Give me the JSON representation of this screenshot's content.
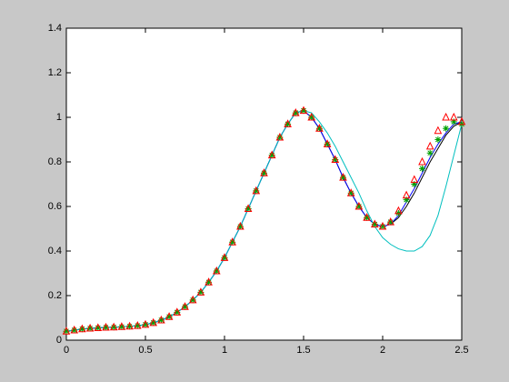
{
  "chart_data": {
    "type": "line",
    "x": [
      0,
      0.05,
      0.1,
      0.15,
      0.2,
      0.25,
      0.3,
      0.35,
      0.4,
      0.45,
      0.5,
      0.55,
      0.6,
      0.65,
      0.7,
      0.75,
      0.8,
      0.85,
      0.9,
      0.95,
      1,
      1.05,
      1.1,
      1.15,
      1.2,
      1.25,
      1.3,
      1.35,
      1.4,
      1.45,
      1.5,
      1.55,
      1.6,
      1.65,
      1.7,
      1.75,
      1.8,
      1.85,
      1.9,
      1.95,
      2,
      2.05,
      2.1,
      2.15,
      2.2,
      2.25,
      2.3,
      2.35,
      2.4,
      2.45,
      2.5
    ],
    "series": [
      {
        "color": "#000000",
        "marker": "none",
        "values": [
          0.04,
          0.045,
          0.05,
          0.053,
          0.055,
          0.057,
          0.058,
          0.06,
          0.062,
          0.065,
          0.07,
          0.078,
          0.09,
          0.105,
          0.125,
          0.15,
          0.18,
          0.215,
          0.26,
          0.31,
          0.37,
          0.44,
          0.51,
          0.59,
          0.67,
          0.75,
          0.83,
          0.91,
          0.97,
          1.02,
          1.03,
          1.0,
          0.95,
          0.88,
          0.81,
          0.73,
          0.66,
          0.6,
          0.55,
          0.52,
          0.51,
          0.52,
          0.55,
          0.6,
          0.66,
          0.73,
          0.8,
          0.86,
          0.92,
          0.96,
          0.98
        ]
      },
      {
        "color": "#0000ff",
        "marker": "none",
        "values": [
          0.04,
          0.045,
          0.05,
          0.053,
          0.055,
          0.057,
          0.058,
          0.06,
          0.062,
          0.065,
          0.07,
          0.078,
          0.09,
          0.105,
          0.125,
          0.15,
          0.18,
          0.215,
          0.26,
          0.31,
          0.37,
          0.44,
          0.51,
          0.59,
          0.67,
          0.75,
          0.83,
          0.91,
          0.97,
          1.02,
          1.03,
          1.0,
          0.95,
          0.88,
          0.81,
          0.73,
          0.66,
          0.6,
          0.55,
          0.52,
          0.51,
          0.52,
          0.56,
          0.62,
          0.68,
          0.75,
          0.82,
          0.88,
          0.93,
          0.97,
          0.98
        ]
      },
      {
        "color": "#00bfbf",
        "marker": "none",
        "values": [
          0.04,
          0.045,
          0.05,
          0.053,
          0.055,
          0.057,
          0.058,
          0.06,
          0.062,
          0.065,
          0.07,
          0.078,
          0.09,
          0.105,
          0.125,
          0.15,
          0.18,
          0.215,
          0.26,
          0.31,
          0.37,
          0.44,
          0.51,
          0.59,
          0.67,
          0.75,
          0.83,
          0.91,
          0.97,
          1.02,
          1.03,
          1.02,
          0.98,
          0.93,
          0.87,
          0.8,
          0.73,
          0.66,
          0.58,
          0.51,
          0.46,
          0.43,
          0.41,
          0.4,
          0.4,
          0.42,
          0.47,
          0.56,
          0.69,
          0.83,
          0.97
        ]
      },
      {
        "color": "#00a000",
        "marker": "*",
        "values": [
          0.04,
          0.045,
          0.05,
          0.053,
          0.055,
          0.057,
          0.058,
          0.06,
          0.062,
          0.065,
          0.07,
          0.078,
          0.09,
          0.105,
          0.125,
          0.15,
          0.18,
          0.215,
          0.26,
          0.31,
          0.37,
          0.44,
          0.51,
          0.59,
          0.67,
          0.75,
          0.83,
          0.91,
          0.97,
          1.02,
          1.03,
          1.0,
          0.95,
          0.88,
          0.81,
          0.73,
          0.66,
          0.6,
          0.55,
          0.52,
          0.51,
          0.53,
          0.57,
          0.63,
          0.7,
          0.77,
          0.84,
          0.9,
          0.95,
          0.98,
          0.97
        ]
      },
      {
        "color": "#ff0000",
        "marker": "^",
        "values": [
          0.04,
          0.045,
          0.05,
          0.053,
          0.055,
          0.057,
          0.058,
          0.06,
          0.062,
          0.065,
          0.07,
          0.078,
          0.09,
          0.105,
          0.125,
          0.15,
          0.18,
          0.215,
          0.26,
          0.31,
          0.37,
          0.44,
          0.51,
          0.59,
          0.67,
          0.75,
          0.83,
          0.91,
          0.97,
          1.02,
          1.03,
          1.0,
          0.95,
          0.88,
          0.81,
          0.73,
          0.66,
          0.6,
          0.55,
          0.52,
          0.51,
          0.53,
          0.58,
          0.65,
          0.72,
          0.8,
          0.87,
          0.94,
          1.0,
          1.0,
          0.98
        ]
      }
    ],
    "xlim": [
      0,
      2.5
    ],
    "ylim": [
      0,
      1.4
    ],
    "xticks": [
      0,
      0.5,
      1,
      1.5,
      2,
      2.5
    ],
    "yticks": [
      0,
      0.2,
      0.4,
      0.6,
      0.8,
      1,
      1.2,
      1.4
    ],
    "grid": false
  }
}
